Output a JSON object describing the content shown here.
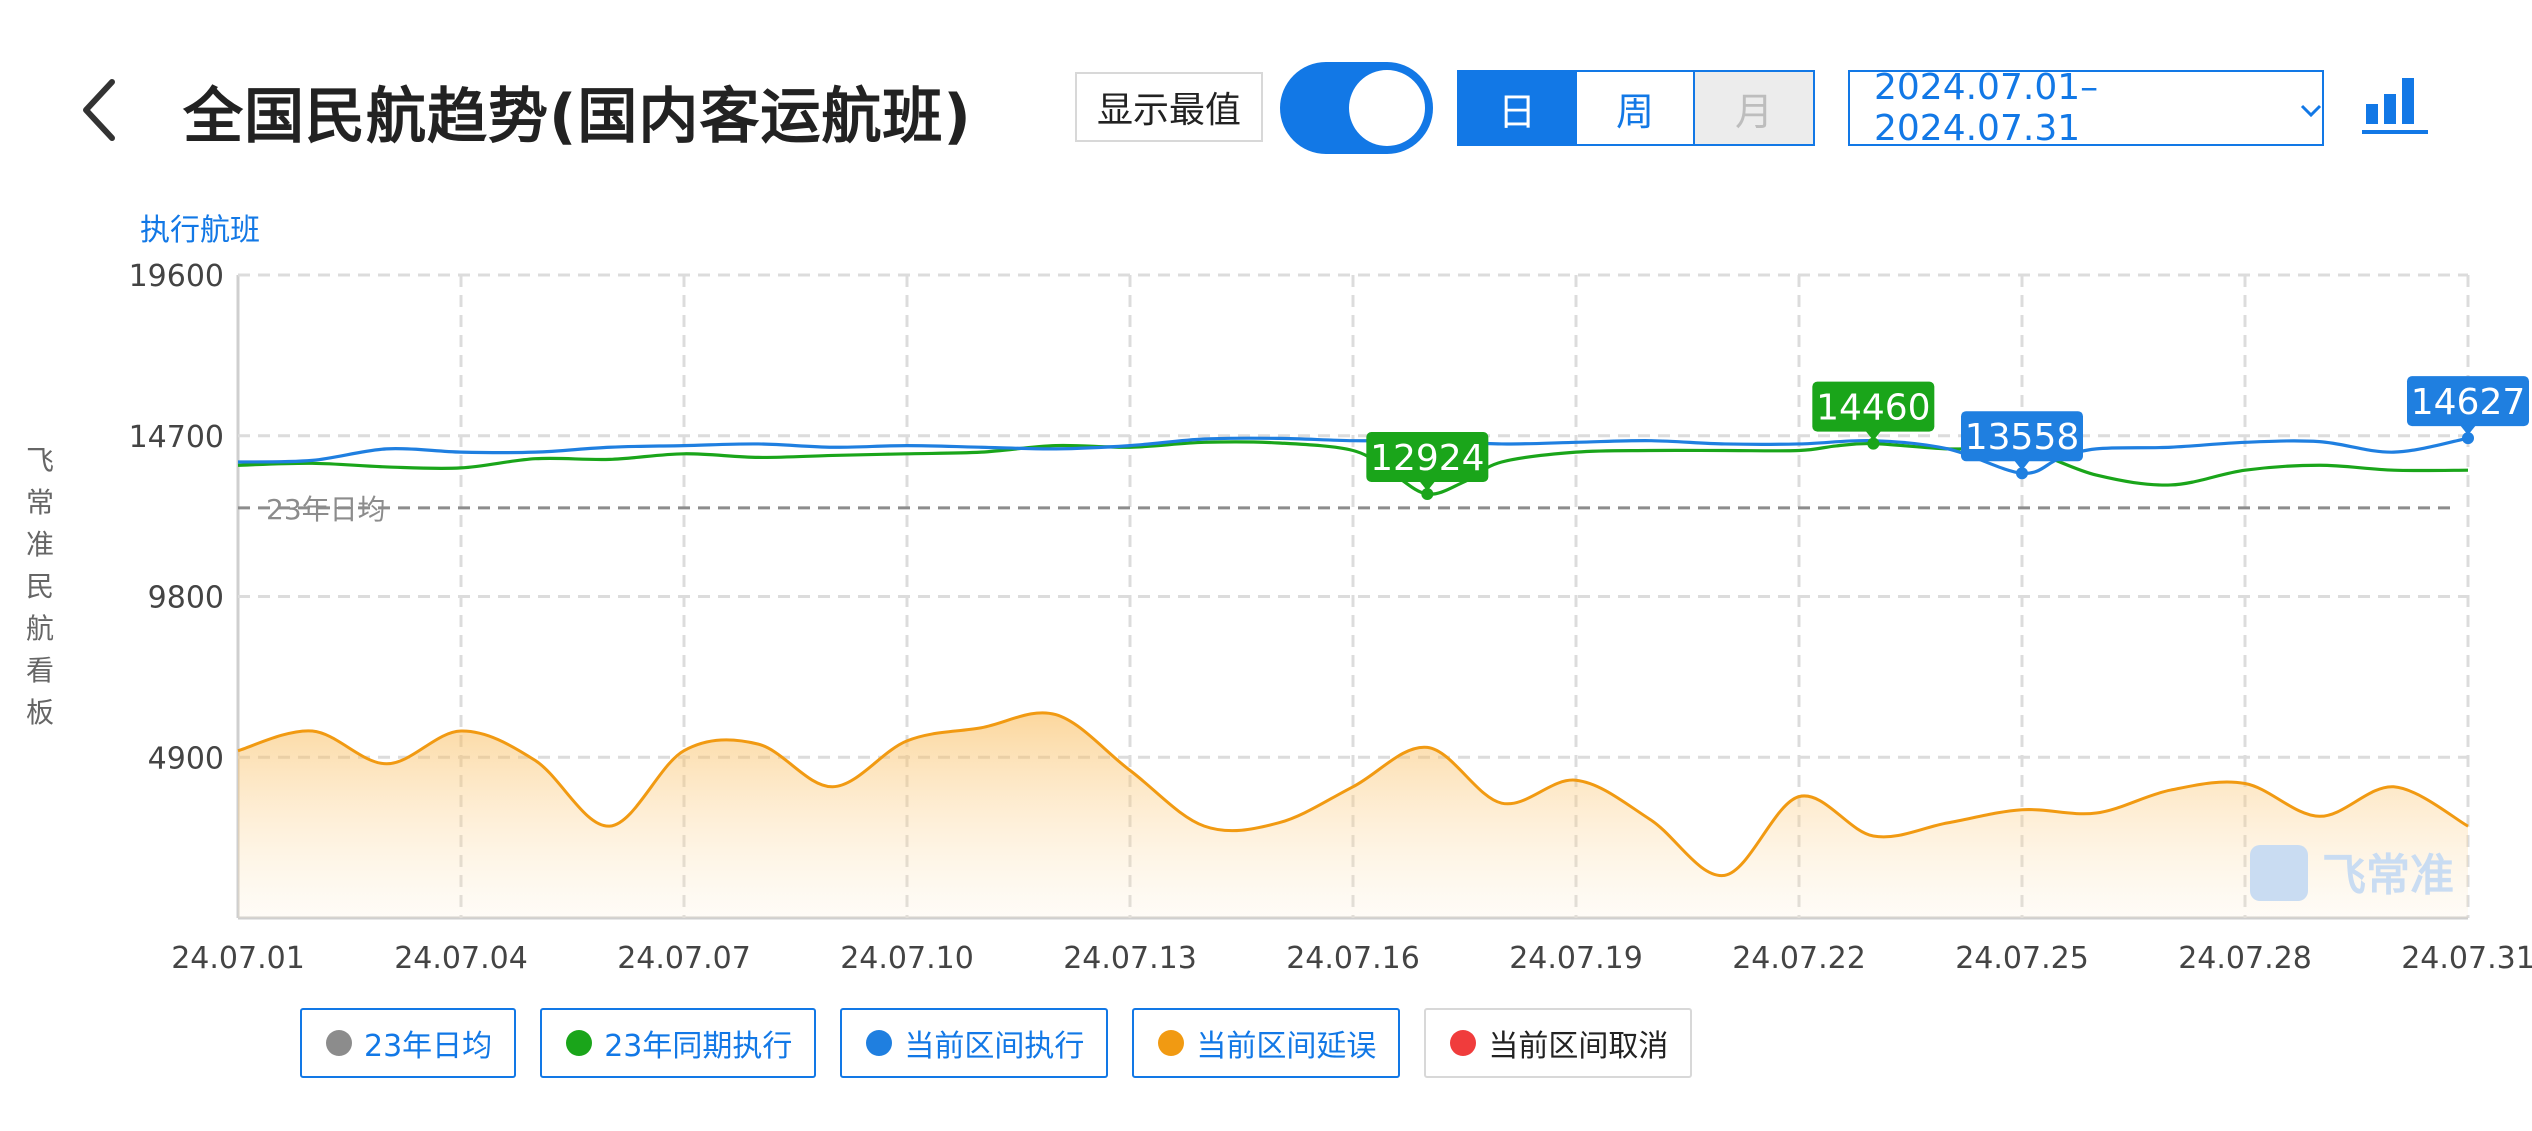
{
  "header": {
    "title": "全国民航趋势(国内客运航班)",
    "toggle_label": "显示最值",
    "toggle_on": true,
    "segments": [
      "日",
      "周",
      "月"
    ],
    "active_segment": "日",
    "date_range": "2024.07.01–2024.07.31",
    "icons": [
      "back-arrow-icon",
      "chevron-down-icon",
      "bar-chart-icon"
    ]
  },
  "side_label": "飞常准民航看板",
  "watermark": "飞常准",
  "colors": {
    "accent": "#1278e6",
    "series_2023": "#1aa51a",
    "series_current": "#1f7fe0",
    "series_delay": "#f19a12",
    "average": "#888888",
    "cancel": "#f03c3c"
  },
  "legend": [
    {
      "label": "23年日均",
      "color": "#8c8c8c",
      "active": true
    },
    {
      "label": "23年同期执行",
      "color": "#1aa51a",
      "active": true
    },
    {
      "label": "当前区间执行",
      "color": "#1f7fe0",
      "active": true
    },
    {
      "label": "当前区间延误",
      "color": "#f19a12",
      "active": true
    },
    {
      "label": "当前区间取消",
      "color": "#f03c3c",
      "active": false
    }
  ],
  "chart_data": {
    "type": "line",
    "title": "执行航班",
    "xlabel": "",
    "ylabel": "",
    "ylim": [
      0,
      19600
    ],
    "yticks": [
      "19600",
      "14700",
      "9800",
      "4900"
    ],
    "xticks": [
      "24.07.01",
      "24.07.04",
      "24.07.07",
      "24.07.10",
      "24.07.13",
      "24.07.16",
      "24.07.19",
      "24.07.22",
      "24.07.25",
      "24.07.28",
      "24.07.31"
    ],
    "grid": true,
    "average_line": {
      "name": "23年日均",
      "label": "23年日均",
      "value": 12500
    },
    "series": [
      {
        "name": "23年同期执行",
        "color": "#1aa51a",
        "x": [
          1,
          2,
          3,
          4,
          5,
          6,
          7,
          8,
          9,
          10,
          11,
          12,
          13,
          14,
          15,
          16,
          16.5,
          17,
          17.5,
          18,
          19,
          20,
          21,
          22,
          22.5,
          23,
          24,
          25,
          26,
          27,
          28,
          29,
          30,
          31
        ],
        "values": [
          13800,
          13860,
          13750,
          13720,
          14000,
          13980,
          14150,
          14040,
          14100,
          14150,
          14200,
          14400,
          14350,
          14500,
          14480,
          14250,
          13600,
          12924,
          13300,
          13900,
          14200,
          14250,
          14250,
          14250,
          14390,
          14460,
          14300,
          14280,
          13500,
          13200,
          13650,
          13800,
          13650,
          13650
        ],
        "max": {
          "label": "14460",
          "x": 23,
          "y": 14460
        },
        "min": {
          "label": "12924",
          "x": 17,
          "y": 12924
        }
      },
      {
        "name": "当前区间执行",
        "color": "#1f7fe0",
        "x": [
          1,
          2,
          3,
          4,
          5,
          6,
          7,
          8,
          9,
          10,
          11,
          12,
          13,
          14,
          15,
          16,
          17,
          18,
          19,
          20,
          21,
          22,
          23,
          24,
          25,
          25.5,
          26,
          27,
          28,
          29,
          30,
          31
        ],
        "values": [
          13900,
          13950,
          14300,
          14200,
          14200,
          14350,
          14400,
          14450,
          14350,
          14400,
          14350,
          14300,
          14400,
          14600,
          14620,
          14550,
          14550,
          14450,
          14500,
          14550,
          14450,
          14450,
          14550,
          14300,
          13558,
          14000,
          14300,
          14350,
          14500,
          14520,
          14200,
          14627
        ],
        "max": {
          "label": "14627",
          "x": 31,
          "y": 14627
        },
        "min": {
          "label": "13558",
          "x": 25,
          "y": 13558
        }
      },
      {
        "name": "当前区间延误",
        "color": "#f19a12",
        "area": true,
        "x": [
          1,
          2,
          3,
          4,
          5,
          6,
          7,
          8,
          9,
          10,
          11,
          12,
          13,
          14,
          15,
          16,
          17,
          18,
          19,
          20,
          21,
          22,
          23,
          24,
          25,
          26,
          27,
          28,
          29,
          30,
          31
        ],
        "values": [
          5100,
          5700,
          4700,
          5700,
          4800,
          2800,
          5100,
          5300,
          4000,
          5400,
          5800,
          6200,
          4500,
          2800,
          2900,
          4000,
          5200,
          3500,
          4200,
          3000,
          1300,
          3700,
          2500,
          2900,
          3300,
          3200,
          3900,
          4100,
          3100,
          4000,
          2800
        ]
      }
    ]
  }
}
